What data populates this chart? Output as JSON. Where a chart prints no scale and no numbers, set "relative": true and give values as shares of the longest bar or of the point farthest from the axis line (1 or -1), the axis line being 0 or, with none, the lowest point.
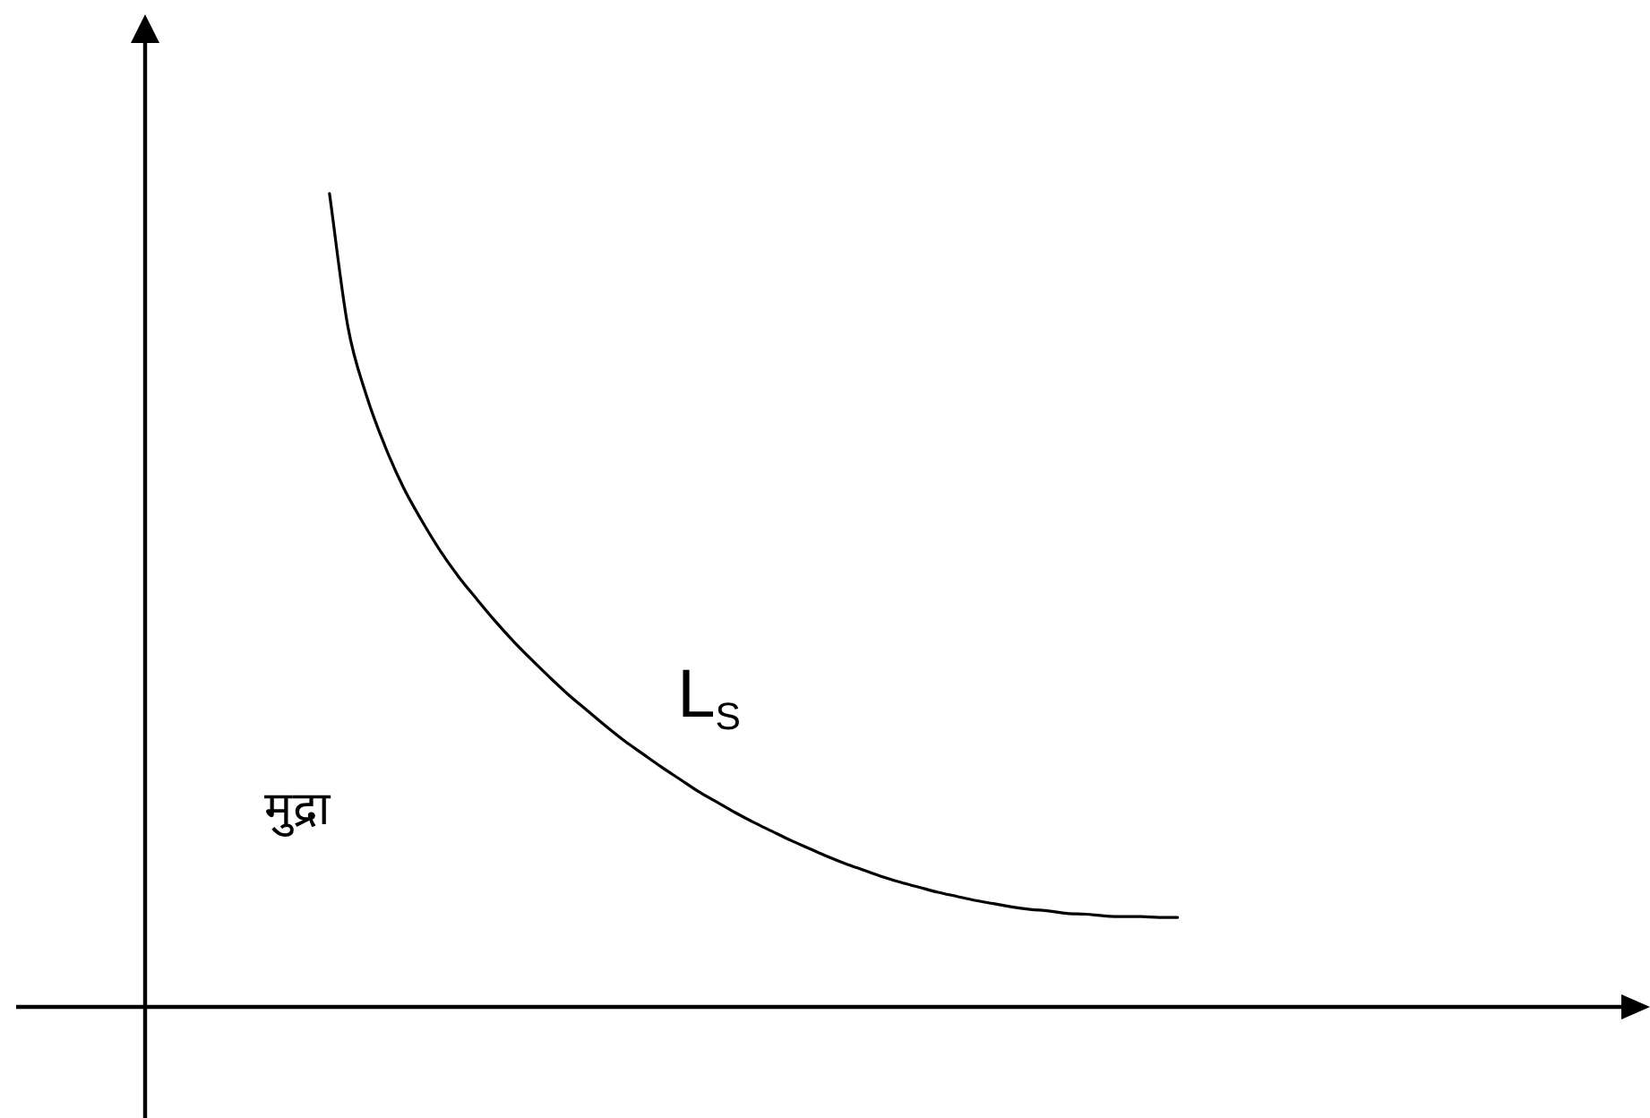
{
  "chart_data": {
    "type": "line",
    "relative": true,
    "categories": [
      null,
      null,
      null,
      null,
      null,
      null,
      null,
      null,
      null,
      null,
      null,
      null,
      null,
      null,
      null,
      null,
      null,
      null,
      null,
      null,
      null,
      null,
      null,
      null,
      null,
      null,
      null,
      null,
      null,
      null,
      null,
      null,
      null,
      null,
      null,
      null,
      null,
      null,
      null,
      null,
      null,
      null,
      null,
      null,
      null,
      null,
      null,
      null,
      null,
      null,
      null,
      null,
      null,
      null,
      null,
      null,
      null,
      null,
      null,
      null,
      null,
      null,
      null,
      null,
      null,
      null,
      null,
      null,
      null,
      null,
      null,
      null,
      null,
      null,
      null,
      null,
      null,
      null,
      null,
      null,
      null,
      null
    ],
    "series": [
      {
        "name": "L$_{S}$",
        "color": "#000000",
        "values": [
          null,
          null,
          null,
          null,
          null,
          null,
          null,
          null,
          null,
          null,
          1,
          0.836,
          0.752,
          0.69,
          0.639,
          0.598,
          0.561,
          0.529,
          0.501,
          0.474,
          0.449,
          0.426,
          0.404,
          0.383,
          0.364,
          0.345,
          0.327,
          0.311,
          0.295,
          0.28,
          0.265,
          0.252,
          0.239,
          0.227,
          0.216,
          0.205,
          0.195,
          0.185,
          0.176,
          0.168,
          0.16,
          0.153,
          0.147,
          0.141,
          0.136,
          0.131,
          0.127,
          0.123,
          0.12,
          0.118,
          0.115,
          0.114,
          0.112,
          0.111,
          0.111,
          0.11,
          0.11,
          null,
          null,
          null,
          null,
          null,
          null,
          null,
          null,
          null,
          null,
          null,
          null,
          null,
          null,
          null,
          null,
          null,
          null,
          null,
          null,
          null,
          null,
          null,
          null,
          null
        ]
      }
    ],
    "annotations": [
      "मुद्रा"
    ],
    "marker": "none",
    "legend": false
  }
}
